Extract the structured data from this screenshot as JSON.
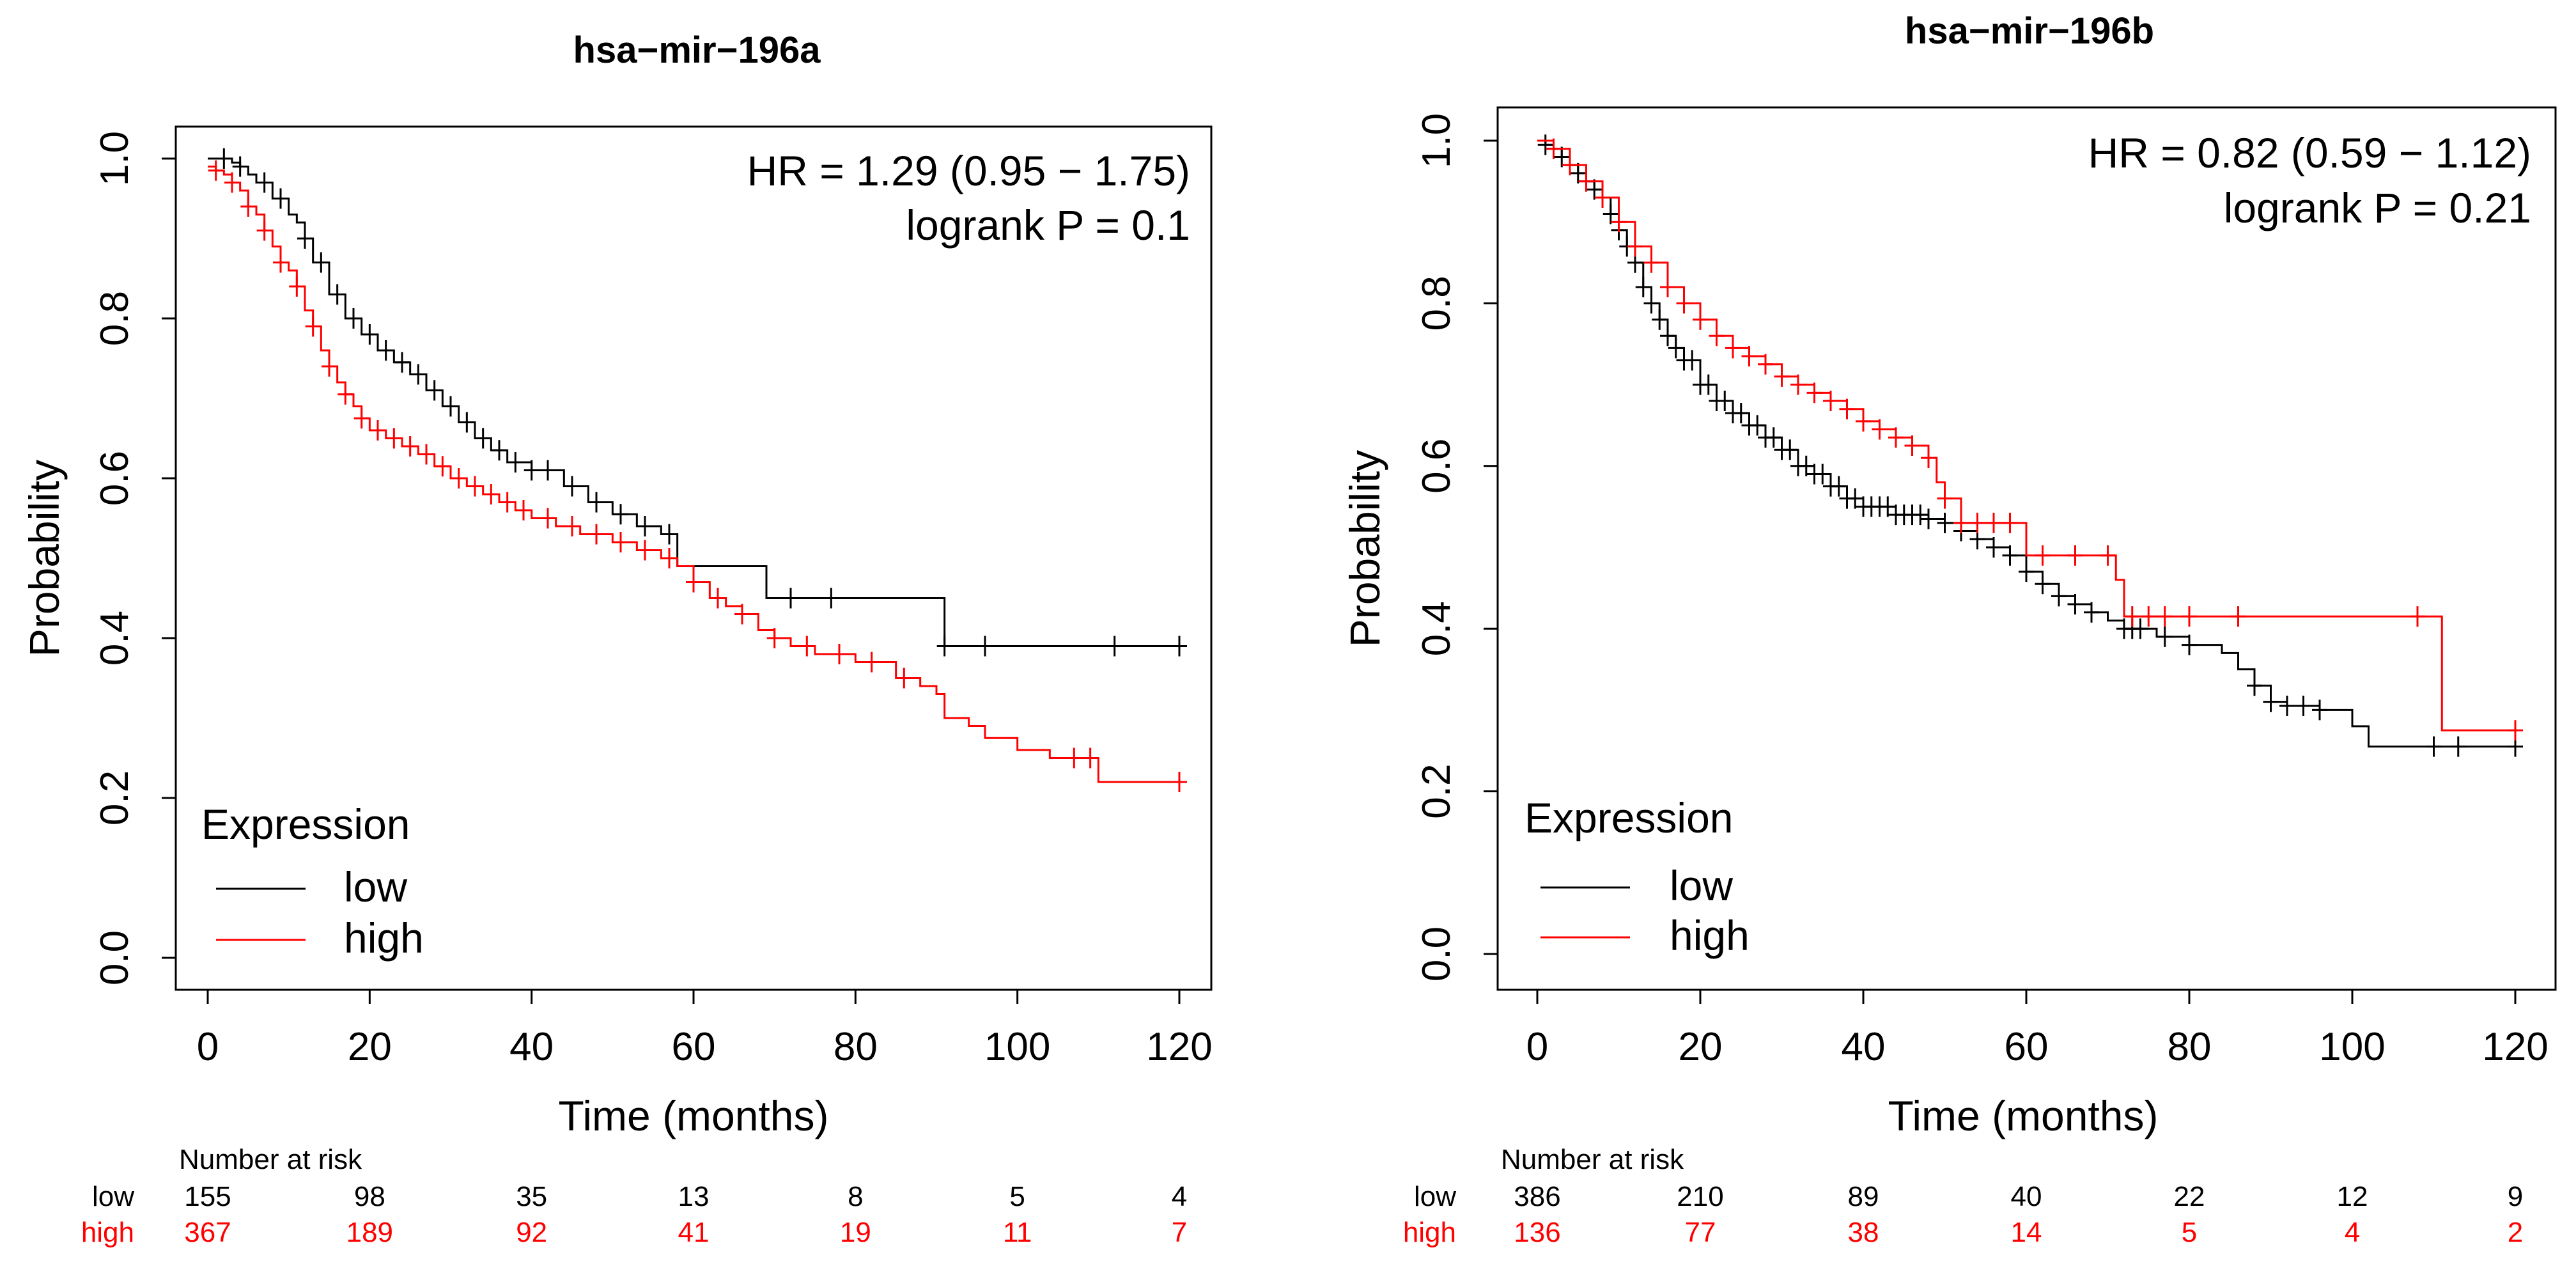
{
  "colors": {
    "low": "#000000",
    "high": "#ff0000",
    "axis": "#000000",
    "background": "#ffffff"
  },
  "chart_data": [
    {
      "type": "line",
      "title": "hsa−mir−196a",
      "xlabel": "Time (months)",
      "ylabel": "Probability",
      "xlim": [
        0,
        120
      ],
      "ylim": [
        0,
        1
      ],
      "x_ticks": [
        "0",
        "20",
        "40",
        "60",
        "80",
        "100",
        "120"
      ],
      "y_ticks": [
        "0.0",
        "0.2",
        "0.4",
        "0.6",
        "0.8",
        "1.0"
      ],
      "hr_text": "HR = 1.29 (0.95 − 1.75)",
      "logrank_text": "logrank P = 0.1",
      "legend": {
        "title": "Expression",
        "low_label": "low",
        "high_label": "high",
        "position": "bottom-left"
      },
      "series": [
        {
          "name": "low",
          "x": [
            0,
            2,
            3,
            4,
            5,
            6,
            8,
            10,
            11,
            12,
            13,
            15,
            17,
            19,
            21,
            23,
            25,
            27,
            29,
            31,
            33,
            35,
            37,
            40,
            44,
            47,
            50,
            53,
            56,
            58,
            69,
            90,
            91,
            120
          ],
          "y": [
            1.0,
            1.0,
            0.995,
            0.99,
            0.98,
            0.97,
            0.95,
            0.93,
            0.92,
            0.9,
            0.87,
            0.83,
            0.8,
            0.78,
            0.76,
            0.745,
            0.73,
            0.71,
            0.69,
            0.67,
            0.65,
            0.635,
            0.62,
            0.61,
            0.59,
            0.57,
            0.555,
            0.54,
            0.53,
            0.49,
            0.45,
            0.45,
            0.39,
            0.39
          ],
          "censor_x": [
            2,
            4,
            7,
            9,
            12,
            14,
            16,
            18,
            20,
            22,
            24,
            26,
            28,
            30,
            32,
            34,
            36,
            38,
            40,
            42,
            45,
            48,
            51,
            54,
            57,
            72,
            77,
            91,
            96,
            112,
            120
          ]
        },
        {
          "name": "high",
          "x": [
            0,
            1,
            2,
            3,
            4,
            5,
            6,
            7,
            8,
            9,
            10,
            11,
            12,
            13,
            14,
            15,
            16,
            17,
            18,
            19,
            20,
            22,
            24,
            26,
            28,
            30,
            32,
            34,
            36,
            38,
            40,
            43,
            46,
            50,
            53,
            56,
            58,
            60,
            62,
            64,
            66,
            68,
            70,
            72,
            75,
            80,
            85,
            88,
            90,
            91,
            94,
            96,
            100,
            104,
            110,
            120
          ],
          "y": [
            0.99,
            0.985,
            0.98,
            0.97,
            0.96,
            0.94,
            0.93,
            0.91,
            0.89,
            0.87,
            0.86,
            0.84,
            0.81,
            0.79,
            0.76,
            0.74,
            0.72,
            0.705,
            0.69,
            0.675,
            0.66,
            0.65,
            0.64,
            0.63,
            0.615,
            0.6,
            0.59,
            0.58,
            0.57,
            0.56,
            0.55,
            0.54,
            0.53,
            0.52,
            0.51,
            0.5,
            0.49,
            0.47,
            0.45,
            0.44,
            0.43,
            0.41,
            0.4,
            0.39,
            0.38,
            0.37,
            0.35,
            0.34,
            0.33,
            0.3,
            0.29,
            0.275,
            0.26,
            0.25,
            0.22,
            0.22
          ],
          "censor_x": [
            1,
            3,
            5,
            7,
            9,
            11,
            13,
            15,
            17,
            19,
            21,
            23,
            25,
            27,
            29,
            31,
            33,
            35,
            37,
            39,
            42,
            45,
            48,
            51,
            54,
            57,
            60,
            63,
            66,
            70,
            74,
            78,
            82,
            86,
            107,
            109,
            120
          ]
        }
      ],
      "risk_table": {
        "header": "Number at risk",
        "low_label": "low",
        "high_label": "high",
        "low": [
          "155",
          "98",
          "35",
          "13",
          "8",
          "5",
          "4"
        ],
        "high": [
          "367",
          "189",
          "92",
          "41",
          "19",
          "11",
          "7"
        ]
      }
    },
    {
      "type": "line",
      "title": "hsa−mir−196b",
      "xlabel": "Time (months)",
      "ylabel": "Probability",
      "xlim": [
        0,
        120
      ],
      "ylim": [
        0,
        1
      ],
      "x_ticks": [
        "0",
        "20",
        "40",
        "60",
        "80",
        "100",
        "120"
      ],
      "y_ticks": [
        "0.0",
        "0.2",
        "0.4",
        "0.6",
        "0.8",
        "1.0"
      ],
      "hr_text": "HR = 0.82 (0.59 − 1.12)",
      "logrank_text": "logrank P = 0.21",
      "legend": {
        "title": "Expression",
        "low_label": "low",
        "high_label": "high",
        "position": "bottom-left"
      },
      "series": [
        {
          "name": "low",
          "x": [
            0,
            1,
            2,
            3,
            4,
            5,
            6,
            7,
            8,
            9,
            10,
            11,
            12,
            13,
            14,
            15,
            16,
            17,
            18,
            20,
            22,
            24,
            26,
            28,
            30,
            32,
            34,
            36,
            38,
            40,
            44,
            48,
            50,
            52,
            54,
            56,
            58,
            60,
            62,
            64,
            66,
            68,
            70,
            72,
            76,
            80,
            84,
            86,
            88,
            90,
            92,
            96,
            100,
            102,
            120
          ],
          "y": [
            1.0,
            0.995,
            0.99,
            0.98,
            0.97,
            0.96,
            0.95,
            0.94,
            0.93,
            0.91,
            0.89,
            0.87,
            0.85,
            0.82,
            0.8,
            0.78,
            0.76,
            0.745,
            0.73,
            0.7,
            0.68,
            0.665,
            0.65,
            0.635,
            0.62,
            0.6,
            0.59,
            0.575,
            0.56,
            0.55,
            0.54,
            0.535,
            0.53,
            0.52,
            0.51,
            0.5,
            0.49,
            0.47,
            0.455,
            0.44,
            0.43,
            0.42,
            0.41,
            0.4,
            0.39,
            0.38,
            0.37,
            0.35,
            0.33,
            0.31,
            0.305,
            0.3,
            0.28,
            0.255,
            0.255
          ],
          "censor_x": [
            1,
            2,
            3,
            4,
            5,
            6,
            7,
            8,
            9,
            10,
            11,
            12,
            13,
            14,
            15,
            16,
            17,
            18,
            19,
            20,
            21,
            22,
            23,
            24,
            25,
            26,
            27,
            28,
            29,
            30,
            31,
            32,
            33,
            34,
            35,
            36,
            37,
            38,
            39,
            40,
            41,
            42,
            43,
            44,
            45,
            46,
            47,
            48,
            50,
            52,
            54,
            56,
            58,
            60,
            62,
            64,
            66,
            68,
            72,
            73,
            74,
            77,
            80,
            88,
            90,
            92,
            94,
            96,
            110,
            113,
            120
          ]
        },
        {
          "name": "high",
          "x": [
            0,
            2,
            4,
            6,
            8,
            10,
            12,
            14,
            16,
            18,
            20,
            22,
            24,
            26,
            28,
            30,
            32,
            34,
            36,
            38,
            40,
            42,
            44,
            46,
            48,
            49,
            50,
            52,
            55,
            60,
            70,
            71,
            72,
            110,
            111,
            120
          ],
          "y": [
            1.0,
            0.99,
            0.97,
            0.95,
            0.93,
            0.9,
            0.87,
            0.85,
            0.82,
            0.8,
            0.78,
            0.76,
            0.745,
            0.735,
            0.725,
            0.71,
            0.7,
            0.69,
            0.68,
            0.67,
            0.655,
            0.645,
            0.635,
            0.625,
            0.61,
            0.58,
            0.56,
            0.53,
            0.53,
            0.49,
            0.49,
            0.46,
            0.415,
            0.415,
            0.275,
            0.275
          ],
          "censor_x": [
            2,
            4,
            6,
            8,
            10,
            12,
            14,
            16,
            18,
            20,
            22,
            24,
            26,
            28,
            30,
            32,
            34,
            36,
            38,
            40,
            42,
            44,
            46,
            48,
            50,
            52,
            54,
            56,
            58,
            62,
            66,
            70,
            73,
            75,
            77,
            80,
            86,
            108,
            120
          ]
        }
      ],
      "risk_table": {
        "header": "Number at risk",
        "low_label": "low",
        "high_label": "high",
        "low": [
          "386",
          "210",
          "89",
          "40",
          "22",
          "12",
          "9"
        ],
        "high": [
          "136",
          "77",
          "38",
          "14",
          "5",
          "4",
          "2"
        ]
      }
    }
  ]
}
